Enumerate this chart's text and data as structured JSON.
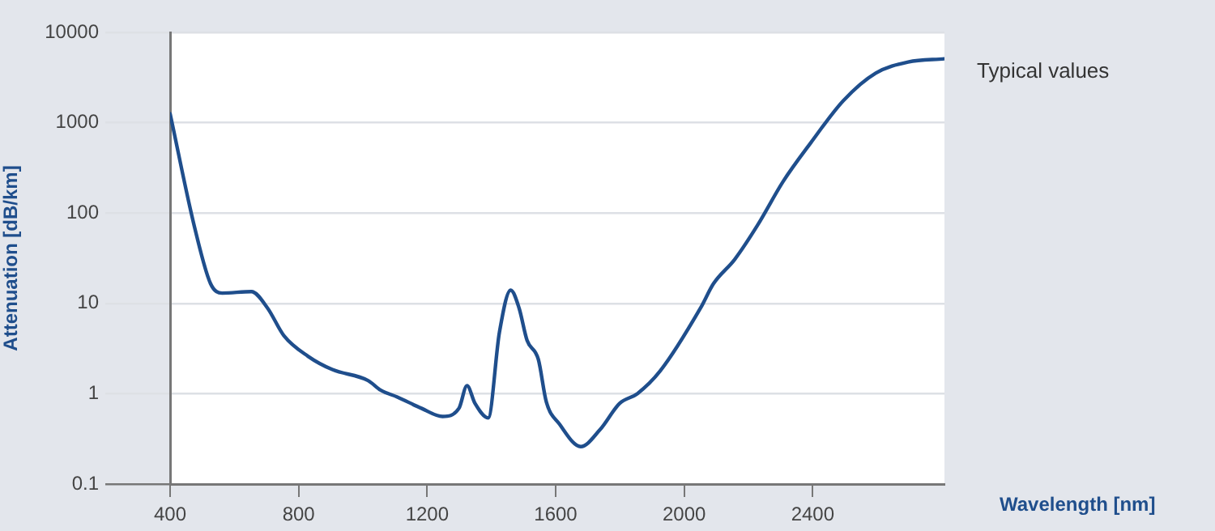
{
  "chart_data": {
    "type": "line",
    "xlabel": "Wavelength [nm]",
    "ylabel": "Attenuation [dB/km]",
    "xlim": [
      400,
      2810
    ],
    "ylim": [
      0.1,
      10000
    ],
    "xticks": [
      400,
      800,
      1200,
      1600,
      2000,
      2400
    ],
    "yticks": [
      0.1,
      1,
      10,
      100,
      1000,
      10000
    ],
    "log": "y",
    "grid": "y",
    "legend": false,
    "series": [
      {
        "name": "Typical values",
        "color": "#1f4e8c",
        "x": [
          400,
          476,
          526,
          562,
          653,
          703,
          754,
          829,
          905,
          1016,
          1056,
          1107,
          1182,
          1248,
          1299,
          1324,
          1349,
          1390,
          1425,
          1460,
          1486,
          1511,
          1546,
          1571,
          1612,
          1678,
          1738,
          1799,
          1854,
          1925,
          2051,
          2091,
          2157,
          2228,
          2308,
          2394,
          2495,
          2596,
          2697,
          2810
        ],
        "values": [
          1260,
          70,
          16.5,
          13,
          13.5,
          8.9,
          4.4,
          2.6,
          1.85,
          1.4,
          1.09,
          0.92,
          0.69,
          0.56,
          0.69,
          1.23,
          0.78,
          0.54,
          4.8,
          14,
          8.9,
          3.9,
          2.4,
          0.81,
          0.46,
          0.26,
          0.4,
          0.78,
          1.0,
          1.78,
          8.9,
          16.5,
          30.6,
          73,
          224,
          600,
          1750,
          3540,
          4700,
          5100
        ]
      }
    ]
  }
}
